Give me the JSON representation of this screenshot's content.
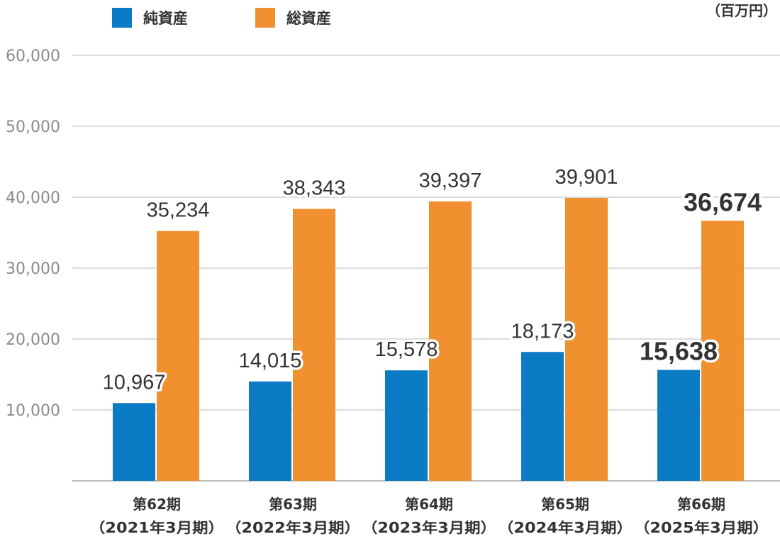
{
  "chart_data": {
    "type": "bar",
    "title": "",
    "unit": "（百万円）",
    "xlabel": "",
    "ylabel": "",
    "ylim": [
      0,
      60000
    ],
    "yticks": [
      10000,
      20000,
      30000,
      40000,
      50000,
      60000
    ],
    "ytick_labels": [
      "10,000",
      "20,000",
      "30,000",
      "40,000",
      "50,000",
      "60,000"
    ],
    "grid": true,
    "legend_position": "top-left",
    "categories": [
      {
        "line1": "第62期",
        "line2": "（2021年3月期）"
      },
      {
        "line1": "第63期",
        "line2": "（2022年3月期）"
      },
      {
        "line1": "第64期",
        "line2": "（2023年3月期）"
      },
      {
        "line1": "第65期",
        "line2": "（2024年3月期）"
      },
      {
        "line1": "第66期",
        "line2": "（2025年3月期）"
      }
    ],
    "series": [
      {
        "name": "純資産",
        "color": "#0a7bc4",
        "values": [
          10967,
          14015,
          15578,
          18173,
          15638
        ],
        "labels": [
          "10,967",
          "14,015",
          "15,578",
          "18,173",
          "15,638"
        ]
      },
      {
        "name": "総資産",
        "color": "#f0902e",
        "values": [
          35234,
          38343,
          39397,
          39901,
          36674
        ],
        "labels": [
          "35,234",
          "38,343",
          "39,397",
          "39,901",
          "36,674"
        ]
      }
    ],
    "emphasized_category_index": 4
  }
}
